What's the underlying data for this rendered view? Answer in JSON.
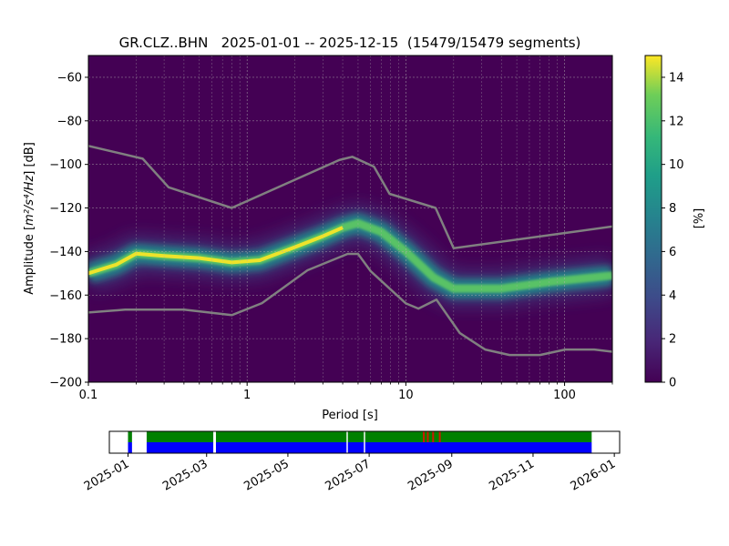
{
  "chart_data": [
    {
      "type": "heatmap",
      "title": "GR.CLZ..BHN   2025-01-01 -- 2025-12-15  (15479/15479 segments)",
      "xlabel": "Period [s]",
      "ylabel_prefix": "Amplitude [",
      "ylabel_math": "m²/s⁴/Hz",
      "ylabel_suffix": "] [dB]",
      "x_scale": "log",
      "xlim": [
        0.1,
        200
      ],
      "ylim": [
        -200,
        -50
      ],
      "x_ticks": [
        0.1,
        1,
        10,
        100
      ],
      "x_tick_labels": [
        "0.1",
        "1",
        "10",
        "100"
      ],
      "y_ticks": [
        -200,
        -180,
        -160,
        -140,
        -120,
        -100,
        -80,
        -60
      ],
      "y_tick_labels": [
        "−200",
        "−180",
        "−160",
        "−140",
        "−120",
        "−100",
        "−80",
        "−60"
      ],
      "grid": true,
      "colormap": "viridis",
      "colorbar": {
        "label": "[%]",
        "range": [
          0,
          15
        ],
        "ticks": [
          0,
          2,
          4,
          6,
          8,
          10,
          12,
          14
        ],
        "tick_labels": [
          "0",
          "2",
          "4",
          "6",
          "8",
          "10",
          "12",
          "14"
        ]
      },
      "mode_curve": [
        {
          "period": 0.1,
          "db": -150
        },
        {
          "period": 0.15,
          "db": -146
        },
        {
          "period": 0.2,
          "db": -141
        },
        {
          "period": 0.3,
          "db": -142
        },
        {
          "period": 0.5,
          "db": -143
        },
        {
          "period": 0.8,
          "db": -145
        },
        {
          "period": 1.2,
          "db": -144
        },
        {
          "period": 2,
          "db": -138
        },
        {
          "period": 3,
          "db": -133
        },
        {
          "period": 4,
          "db": -129
        },
        {
          "period": 5,
          "db": -127
        },
        {
          "period": 7,
          "db": -131
        },
        {
          "period": 10,
          "db": -140
        },
        {
          "period": 15,
          "db": -152
        },
        {
          "period": 20,
          "db": -157
        },
        {
          "period": 40,
          "db": -157
        },
        {
          "period": 80,
          "db": -154
        },
        {
          "period": 200,
          "db": -151
        }
      ],
      "nhnm": [
        {
          "period": 0.1,
          "db": -91.5
        },
        {
          "period": 0.22,
          "db": -97.4
        },
        {
          "period": 0.32,
          "db": -110.5
        },
        {
          "period": 0.8,
          "db": -120
        },
        {
          "period": 3.8,
          "db": -98
        },
        {
          "period": 4.6,
          "db": -96.5
        },
        {
          "period": 6.3,
          "db": -101
        },
        {
          "period": 7.9,
          "db": -113.5
        },
        {
          "period": 15.4,
          "db": -120
        },
        {
          "period": 20,
          "db": -138.5
        },
        {
          "period": 200,
          "db": -128.5
        }
      ],
      "nlnm": [
        {
          "period": 0.1,
          "db": -168
        },
        {
          "period": 0.17,
          "db": -166.7
        },
        {
          "period": 0.4,
          "db": -166.7
        },
        {
          "period": 0.8,
          "db": -169.2
        },
        {
          "period": 1.24,
          "db": -163.7
        },
        {
          "period": 2.4,
          "db": -148.6
        },
        {
          "period": 4.3,
          "db": -141.1
        },
        {
          "period": 5,
          "db": -141.1
        },
        {
          "period": 6,
          "db": -149
        },
        {
          "period": 10,
          "db": -163.8
        },
        {
          "period": 12,
          "db": -166.2
        },
        {
          "period": 15.6,
          "db": -162.1
        },
        {
          "period": 21.9,
          "db": -177.5
        },
        {
          "period": 31.6,
          "db": -185
        },
        {
          "period": 45,
          "db": -187.5
        },
        {
          "period": 70,
          "db": -187.5
        },
        {
          "period": 101,
          "db": -185
        },
        {
          "period": 154,
          "db": -185
        },
        {
          "period": 200,
          "db": -186
        }
      ]
    },
    {
      "type": "timeline",
      "x_range": [
        "2024-12-18",
        "2026-01-05"
      ],
      "x_ticks": [
        "2025-01-01",
        "2025-03-01",
        "2025-05-01",
        "2025-07-01",
        "2025-09-01",
        "2025-11-01",
        "2026-01-01"
      ],
      "x_tick_labels": [
        "2025-01",
        "2025-03",
        "2025-05",
        "2025-07",
        "2025-09",
        "2025-11",
        "2026-01"
      ],
      "colors": {
        "coverage": "#0000ff",
        "used": "#008000",
        "gap": "#ffffff",
        "flag": "#ff0000"
      },
      "segments": [
        {
          "start": "2025-01-01",
          "end": "2025-01-04",
          "kind": "coverage_only"
        },
        {
          "start": "2025-01-15",
          "end": "2025-03-06",
          "kind": "used"
        },
        {
          "start": "2025-03-08",
          "end": "2025-06-14",
          "kind": "used"
        },
        {
          "start": "2025-06-15",
          "end": "2025-06-27",
          "kind": "used"
        },
        {
          "start": "2025-06-28",
          "end": "2025-12-15",
          "kind": "used"
        }
      ],
      "flags": [
        "2025-08-11",
        "2025-08-14",
        "2025-08-18",
        "2025-08-23"
      ]
    }
  ]
}
